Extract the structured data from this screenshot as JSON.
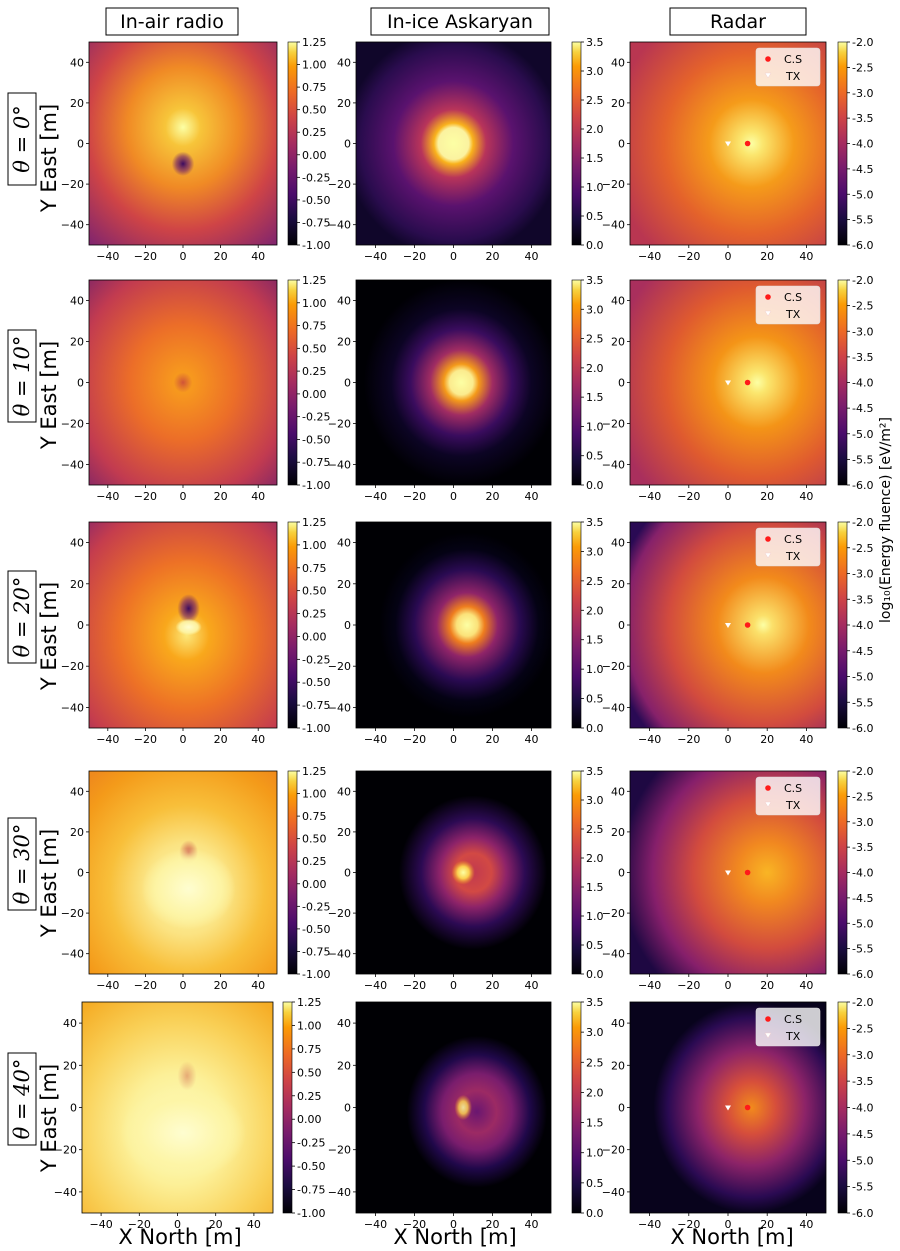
{
  "columns": [
    {
      "title": "In-air radio",
      "cbar_ticks": [
        "1.25",
        "1.00",
        "0.75",
        "0.50",
        "0.25",
        "0.00",
        "-0.25",
        "-0.50",
        "-0.75",
        "-1.00"
      ]
    },
    {
      "title": "In-ice Askaryan",
      "cbar_ticks": [
        "3.5",
        "3.0",
        "2.5",
        "2.0",
        "1.5",
        "1.0",
        "0.5",
        "0.0"
      ]
    },
    {
      "title": "Radar",
      "cbar_ticks": [
        "-2.0",
        "-2.5",
        "-3.0",
        "-3.5",
        "-4.0",
        "-4.5",
        "-5.0",
        "-5.5",
        "-6.0"
      ]
    }
  ],
  "rows": [
    {
      "label": "θ = 0°",
      "theta": 0
    },
    {
      "label": "θ = 10°",
      "theta": 10
    },
    {
      "label": "θ = 20°",
      "theta": 20
    },
    {
      "label": "θ = 30°",
      "theta": 30
    },
    {
      "label": "θ = 40°",
      "theta": 40
    }
  ],
  "y_axis_label": "Y East [m]",
  "x_axis_label": "X North [m]",
  "colorbar_label": "log₁₀(Energy fluence) [eV/m²]",
  "x_ticks": [
    "−40",
    "−20",
    "0",
    "20",
    "40"
  ],
  "y_ticks": [
    "40",
    "20",
    "0",
    "−20",
    "−40"
  ],
  "legend": {
    "cs": "C.S",
    "tx": "TX"
  },
  "chart_data": {
    "type": "heatmap",
    "colormap": "inferno",
    "xlim": [
      -50,
      50
    ],
    "ylim": [
      -50,
      50
    ],
    "xlabel": "X North [m]",
    "ylabel": "Y East [m]",
    "column_titles": [
      "In-air radio",
      "In-ice Askaryan",
      "Radar"
    ],
    "row_zenith_deg": [
      0,
      10,
      20,
      30,
      40
    ],
    "colorbar_ranges": [
      [
        -1.0,
        1.25
      ],
      [
        0.0,
        3.5
      ],
      [
        -6.0,
        -2.0
      ]
    ],
    "colorbar_label": "log₁₀(Energy fluence) [eV/m²]",
    "radar_markers": [
      {
        "row": 0,
        "cs": [
          10,
          0
        ],
        "tx": [
          0,
          0
        ]
      },
      {
        "row": 1,
        "cs": [
          10,
          0
        ],
        "tx": [
          0,
          0
        ]
      },
      {
        "row": 2,
        "cs": [
          10,
          0
        ],
        "tx": [
          0,
          0
        ]
      },
      {
        "row": 3,
        "cs": [
          10,
          0
        ],
        "tx": [
          0,
          0
        ]
      },
      {
        "row": 4,
        "cs": [
          10,
          0
        ],
        "tx": [
          0,
          0
        ]
      }
    ],
    "legend_entries": [
      "C.S",
      "TX"
    ],
    "legend_position": "top-right"
  }
}
